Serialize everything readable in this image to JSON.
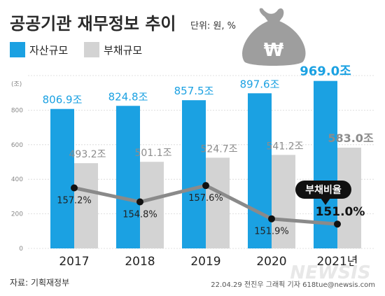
{
  "header": {
    "title": "공공기관 재무정보 추이",
    "unit": "단위: 원, %"
  },
  "legend": {
    "assets": "자산규모",
    "debt": "부채규모"
  },
  "colors": {
    "assets": "#1ba1e2",
    "debt": "#d3d3d3",
    "ratio_line": "#8a8a8a",
    "badge": "#111111",
    "money_bag": "#9e9e9e"
  },
  "icons": {
    "money_bag": "money-bag-won-icon"
  },
  "chart_data": {
    "type": "bar",
    "categories": [
      "2017",
      "2018",
      "2019",
      "2020",
      "2021년"
    ],
    "series": [
      {
        "name": "자산규모",
        "values": [
          806.9,
          824.8,
          857.5,
          897.6,
          969.0
        ],
        "labels": [
          "806.9조",
          "824.8조",
          "857.5조",
          "897.6조",
          "969.0조"
        ]
      },
      {
        "name": "부채규모",
        "values": [
          493.2,
          501.1,
          524.7,
          541.2,
          583.0
        ],
        "labels": [
          "493.2조",
          "501.1조",
          "524.7조",
          "541.2조",
          "583.0조"
        ]
      }
    ],
    "line_series": {
      "name": "부채비율",
      "type": "line",
      "values": [
        157.2,
        154.8,
        157.6,
        151.9,
        151.0
      ],
      "labels": [
        "157.2%",
        "154.8%",
        "157.6%",
        "151.9%",
        "151.0%"
      ],
      "ylim": [
        140,
        175
      ]
    },
    "highlight_index": 4,
    "yticks": [
      "0",
      "200",
      "400",
      "600",
      "800",
      "1000"
    ],
    "yunit": "(조)",
    "ylim": [
      0,
      1000
    ],
    "grid": true,
    "legend_position": "top-left"
  },
  "footer": {
    "source": "자료: 기획재정부",
    "credit": "22.04.29 전진우 그래픽 기자 618tue@newsis.com",
    "logo": "NEWSIS"
  }
}
